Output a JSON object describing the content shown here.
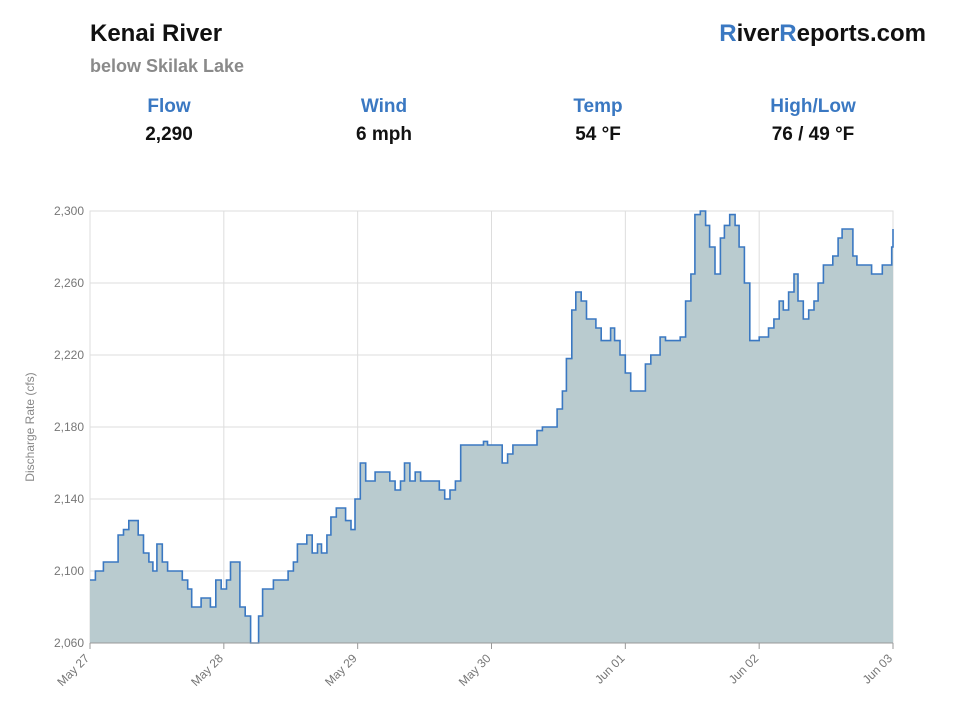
{
  "header": {
    "title": "Kenai River",
    "subtitle": "below Skilak Lake",
    "brand_r1": "R",
    "brand_mid": "iver",
    "brand_r2": "R",
    "brand_end": "eports.com"
  },
  "stats": [
    {
      "label": "Flow",
      "value": "2,290"
    },
    {
      "label": "Wind",
      "value": "6 mph"
    },
    {
      "label": "Temp",
      "value": "54 °F"
    },
    {
      "label": "High/Low",
      "value": "76 / 49 °F"
    }
  ],
  "colors": {
    "line": "#3a78c2",
    "fill": "#b9cbcf",
    "grid": "#dddddd",
    "accent": "#3a78c2"
  },
  "chart_data": {
    "type": "area",
    "step": true,
    "ylabel": "Discharge Rate (cfs)",
    "xlabel": "",
    "ylim": [
      2060,
      2300
    ],
    "yticks": [
      2060,
      2100,
      2140,
      2180,
      2220,
      2260,
      2300
    ],
    "ytick_labels": [
      "2,060",
      "2,100",
      "2,140",
      "2,180",
      "2,220",
      "2,260",
      "2,300"
    ],
    "xlim": [
      0,
      6
    ],
    "xticks": [
      0,
      1,
      2,
      3,
      4,
      5,
      6
    ],
    "xtick_labels": [
      "May 27",
      "May 28",
      "May 29",
      "May 30",
      "Jun 01",
      "Jun 02",
      "Jun 03"
    ],
    "x_unit": "days from May 27",
    "grid": true,
    "series": [
      {
        "points": [
          [
            0.0,
            2095
          ],
          [
            0.04,
            2100
          ],
          [
            0.1,
            2105
          ],
          [
            0.21,
            2120
          ],
          [
            0.25,
            2123
          ],
          [
            0.29,
            2128
          ],
          [
            0.36,
            2120
          ],
          [
            0.4,
            2110
          ],
          [
            0.44,
            2105
          ],
          [
            0.47,
            2100
          ],
          [
            0.5,
            2115
          ],
          [
            0.54,
            2105
          ],
          [
            0.58,
            2100
          ],
          [
            0.69,
            2095
          ],
          [
            0.73,
            2090
          ],
          [
            0.76,
            2080
          ],
          [
            0.83,
            2085
          ],
          [
            0.9,
            2080
          ],
          [
            0.94,
            2095
          ],
          [
            0.98,
            2090
          ],
          [
            1.02,
            2095
          ],
          [
            1.05,
            2105
          ],
          [
            1.12,
            2080
          ],
          [
            1.16,
            2075
          ],
          [
            1.2,
            2060
          ],
          [
            1.26,
            2075
          ],
          [
            1.29,
            2090
          ],
          [
            1.37,
            2095
          ],
          [
            1.48,
            2100
          ],
          [
            1.52,
            2105
          ],
          [
            1.55,
            2115
          ],
          [
            1.62,
            2120
          ],
          [
            1.66,
            2110
          ],
          [
            1.7,
            2115
          ],
          [
            1.73,
            2110
          ],
          [
            1.77,
            2120
          ],
          [
            1.8,
            2130
          ],
          [
            1.84,
            2135
          ],
          [
            1.91,
            2128
          ],
          [
            1.95,
            2123
          ],
          [
            1.98,
            2140
          ],
          [
            2.02,
            2160
          ],
          [
            2.06,
            2150
          ],
          [
            2.13,
            2155
          ],
          [
            2.24,
            2150
          ],
          [
            2.28,
            2145
          ],
          [
            2.32,
            2150
          ],
          [
            2.35,
            2160
          ],
          [
            2.39,
            2150
          ],
          [
            2.43,
            2155
          ],
          [
            2.47,
            2150
          ],
          [
            2.61,
            2145
          ],
          [
            2.65,
            2140
          ],
          [
            2.69,
            2145
          ],
          [
            2.73,
            2150
          ],
          [
            2.77,
            2170
          ],
          [
            2.94,
            2172
          ],
          [
            2.97,
            2170
          ],
          [
            3.05,
            2170
          ],
          [
            3.08,
            2160
          ],
          [
            3.12,
            2165
          ],
          [
            3.16,
            2170
          ],
          [
            3.34,
            2178
          ],
          [
            3.38,
            2180
          ],
          [
            3.49,
            2190
          ],
          [
            3.53,
            2200
          ],
          [
            3.56,
            2218
          ],
          [
            3.6,
            2245
          ],
          [
            3.63,
            2255
          ],
          [
            3.67,
            2250
          ],
          [
            3.71,
            2240
          ],
          [
            3.78,
            2235
          ],
          [
            3.82,
            2228
          ],
          [
            3.89,
            2235
          ],
          [
            3.92,
            2228
          ],
          [
            3.96,
            2220
          ],
          [
            4.0,
            2210
          ],
          [
            4.04,
            2200
          ],
          [
            4.15,
            2215
          ],
          [
            4.19,
            2220
          ],
          [
            4.26,
            2230
          ],
          [
            4.3,
            2228
          ],
          [
            4.41,
            2230
          ],
          [
            4.45,
            2250
          ],
          [
            4.49,
            2265
          ],
          [
            4.52,
            2298
          ],
          [
            4.56,
            2300
          ],
          [
            4.6,
            2292
          ],
          [
            4.63,
            2280
          ],
          [
            4.67,
            2265
          ],
          [
            4.71,
            2285
          ],
          [
            4.74,
            2292
          ],
          [
            4.78,
            2298
          ],
          [
            4.82,
            2292
          ],
          [
            4.85,
            2280
          ],
          [
            4.89,
            2260
          ],
          [
            4.93,
            2228
          ],
          [
            5.0,
            2230
          ],
          [
            5.07,
            2235
          ],
          [
            5.11,
            2240
          ],
          [
            5.15,
            2250
          ],
          [
            5.18,
            2245
          ],
          [
            5.22,
            2255
          ],
          [
            5.26,
            2265
          ],
          [
            5.29,
            2250
          ],
          [
            5.33,
            2240
          ],
          [
            5.37,
            2245
          ],
          [
            5.41,
            2250
          ],
          [
            5.44,
            2260
          ],
          [
            5.48,
            2270
          ],
          [
            5.55,
            2275
          ],
          [
            5.59,
            2285
          ],
          [
            5.62,
            2290
          ],
          [
            5.7,
            2275
          ],
          [
            5.73,
            2270
          ],
          [
            5.84,
            2265
          ],
          [
            5.92,
            2270
          ],
          [
            5.99,
            2280
          ],
          [
            6.0,
            2290
          ]
        ]
      }
    ]
  }
}
